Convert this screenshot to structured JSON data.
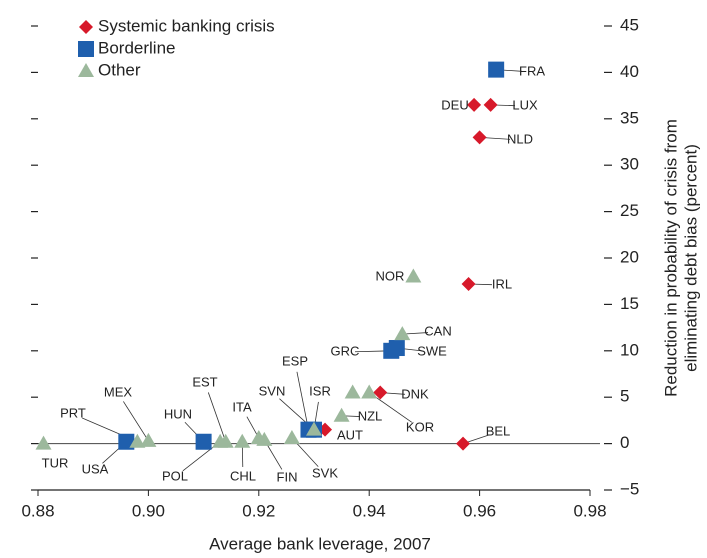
{
  "chart_data": {
    "type": "scatter",
    "x_label": "Average bank leverage, 2007",
    "y_label": [
      "Reduction in probability of crisis from",
      "eliminating debt bias (percent)"
    ],
    "xlim": [
      0.88,
      0.98
    ],
    "xticks": [
      0.88,
      {
        "value": 0.9,
        "label": "0.90"
      },
      0.92,
      0.94,
      0.96,
      0.98
    ],
    "ylim": [
      -5,
      45
    ],
    "yticks": [
      {
        "value": -5,
        "label": "−5"
      },
      0,
      5,
      10,
      15,
      20,
      25,
      30,
      35,
      40,
      45
    ],
    "legend": "upper left",
    "series": [
      {
        "name": "Systemic banking crisis",
        "color": "#d7192a",
        "marker": "diamond",
        "x": [
          0.959,
          0.962,
          0.96,
          0.958,
          0.942,
          0.932,
          0.957
        ],
        "values": [
          36.5,
          36.5,
          33,
          17.2,
          5.5,
          1.5,
          0
        ],
        "labels": [
          "DEU",
          "LUX",
          "NLD",
          "IRL",
          "DNK",
          "AUT",
          "BEL"
        ]
      },
      {
        "name": "Borderline",
        "color": "#1f5fad",
        "marker": "square",
        "x": [
          0.963,
          0.944,
          0.945,
          0.929,
          0.93,
          0.896,
          0.91
        ],
        "values": [
          40.3,
          10,
          10.3,
          1.5,
          1.5,
          0.2,
          0.2
        ],
        "labels": [
          "FRA",
          "GRC",
          "SWE",
          "ESP",
          "ISR",
          "USA",
          "HUN"
        ]
      },
      {
        "name": "Other",
        "color": "#9cb89c",
        "marker": "triangle",
        "x": [
          0.881,
          0.898,
          0.9,
          0.914,
          0.917,
          0.913,
          0.92,
          0.921,
          0.926,
          0.93,
          0.935,
          0.94,
          0.937,
          0.948,
          0.946
        ],
        "values": [
          0,
          0.2,
          0.3,
          0.2,
          0.2,
          0.2,
          0.6,
          0.4,
          0.6,
          1.5,
          3,
          5.5,
          5.5,
          18,
          11.8
        ],
        "labels": [
          "TUR",
          "PRT",
          "MEX",
          "EST",
          "CHL",
          "POL",
          "ITA",
          "FIN",
          "SVK",
          "SVN",
          "NZL",
          "KOR",
          null,
          "NOR",
          "CAN"
        ]
      }
    ]
  }
}
